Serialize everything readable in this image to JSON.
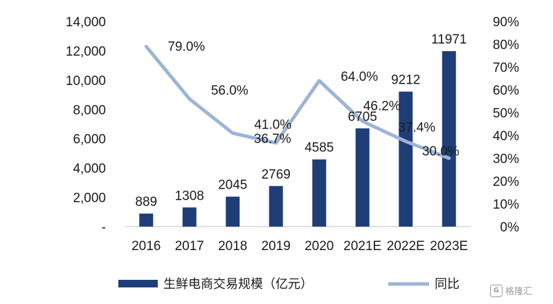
{
  "chart_data": {
    "type": "bar",
    "categories": [
      "2016",
      "2017",
      "2018",
      "2019",
      "2020",
      "2021E",
      "2022E",
      "2023E"
    ],
    "series": [
      {
        "name": "生鲜电商交易规模（亿元）",
        "type": "bar",
        "axis": "left",
        "color": "#1f3e78",
        "values": [
          889,
          1308,
          2045,
          2769,
          4585,
          6705,
          9212,
          11971
        ],
        "labels": [
          "889",
          "1308",
          "2045",
          "2769",
          "4585",
          "6705",
          "9212",
          "11971"
        ]
      },
      {
        "name": "同比",
        "type": "line",
        "axis": "right",
        "color": "#9db4d6",
        "values": [
          79.0,
          56.0,
          41.0,
          36.7,
          64.0,
          46.2,
          37.4,
          30.0
        ],
        "labels": [
          "79.0%",
          "56.0%",
          "41.0%",
          "36.7%",
          "64.0%",
          "46.2%",
          "37.4%",
          "30.0%"
        ]
      }
    ],
    "left_axis": {
      "ylim": [
        0,
        14000
      ],
      "ticks": [
        0,
        2000,
        4000,
        6000,
        8000,
        10000,
        12000,
        14000
      ],
      "tick_labels": [
        "-",
        "2,000",
        "4,000",
        "6,000",
        "8,000",
        "10,000",
        "12,000",
        "14,000"
      ]
    },
    "right_axis": {
      "ylim": [
        0,
        90
      ],
      "ticks": [
        0,
        10,
        20,
        30,
        40,
        50,
        60,
        70,
        80,
        90
      ],
      "tick_labels": [
        "0%",
        "10%",
        "20%",
        "30%",
        "40%",
        "50%",
        "60%",
        "70%",
        "80%",
        "90%"
      ]
    },
    "title": "",
    "xlabel": "",
    "ylabel": "",
    "grid": false,
    "legend": {
      "position": "bottom",
      "items": [
        "生鲜电商交易规模（亿元）",
        "同比"
      ]
    }
  },
  "watermark": {
    "text": "格隆汇",
    "icon": "G"
  }
}
